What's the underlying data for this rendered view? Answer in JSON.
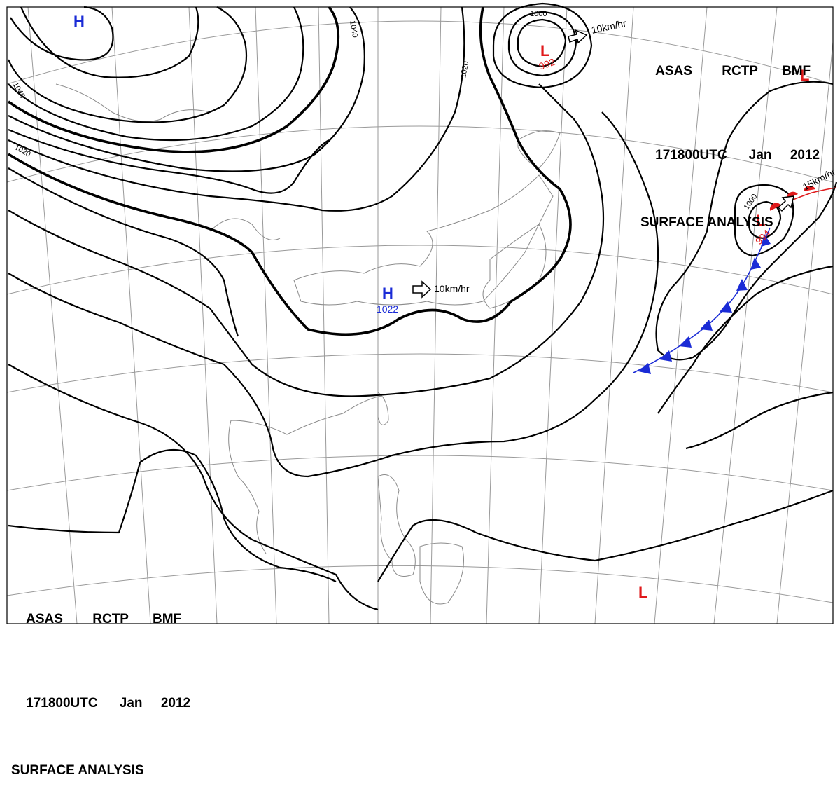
{
  "header": {
    "line1": [
      "ASAS",
      "RCTP",
      "BMF"
    ],
    "line2": [
      "171800UTC",
      "Jan",
      "2012"
    ],
    "line3": "SURFACE ANALYSIS"
  },
  "colors": {
    "high": "#1a2bd6",
    "low": "#e0191b",
    "cold_front": "#1a2bd6",
    "warm_front": "#e0191b",
    "isobar": "#000000",
    "graticule": "#9a9a9a"
  },
  "pressure_centers": [
    {
      "type": "H",
      "label": "H",
      "value": ""
    },
    {
      "type": "L",
      "label": "L",
      "value": "992"
    },
    {
      "type": "H",
      "label": "H",
      "value": "1022"
    },
    {
      "type": "L",
      "label": "L",
      "value": "994"
    },
    {
      "type": "L",
      "label": "L",
      "value": ""
    },
    {
      "type": "L",
      "label": "L",
      "value": ""
    }
  ],
  "motion_vectors": [
    {
      "text": "10km/hr"
    },
    {
      "text": "10km/hr"
    },
    {
      "text": "15km/hr"
    }
  ],
  "isobar_labels": [
    "1040",
    "1040",
    "1020",
    "1020",
    "1000",
    "1000"
  ],
  "fronts": [
    {
      "type": "cold",
      "icon": "cold-front-triangle"
    },
    {
      "type": "warm",
      "icon": "warm-front-semicircle"
    }
  ]
}
